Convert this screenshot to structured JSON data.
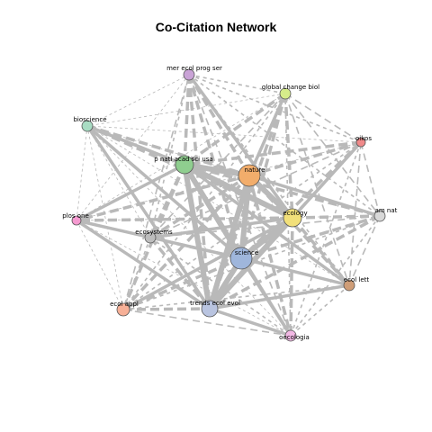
{
  "title": "Co-Citation Network",
  "nodes": [
    {
      "id": "mer",
      "label": "mer ecol prog ser",
      "color": "#c9a3d6"
    },
    {
      "id": "gcb",
      "label": "global change biol",
      "color": "#d6ec8a"
    },
    {
      "id": "bio",
      "label": "bioscience",
      "color": "#a8dcc3"
    },
    {
      "id": "oik",
      "label": "oikos",
      "color": "#f08a8a"
    },
    {
      "id": "pnas",
      "label": "p natl acad sci usa",
      "color": "#8fce8f"
    },
    {
      "id": "nat",
      "label": "nature",
      "color": "#f2ad6b"
    },
    {
      "id": "eco",
      "label": "ecology",
      "color": "#f2e07a"
    },
    {
      "id": "amn",
      "label": "am nat",
      "color": "#d8d8d8"
    },
    {
      "id": "plos",
      "label": "plos one",
      "color": "#f59ad0"
    },
    {
      "id": "ecosys",
      "label": "ecosystems",
      "color": "#bdbdbd"
    },
    {
      "id": "sci",
      "label": "science",
      "color": "#9fb6dc"
    },
    {
      "id": "elett",
      "label": "ecol lett",
      "color": "#cf9d77"
    },
    {
      "id": "eapp",
      "label": "ecol appl",
      "color": "#f7b097"
    },
    {
      "id": "tree",
      "label": "trends ecol evol",
      "color": "#b9c4e0"
    },
    {
      "id": "oec",
      "label": "oecologia",
      "color": "#f2b8e4"
    }
  ]
}
